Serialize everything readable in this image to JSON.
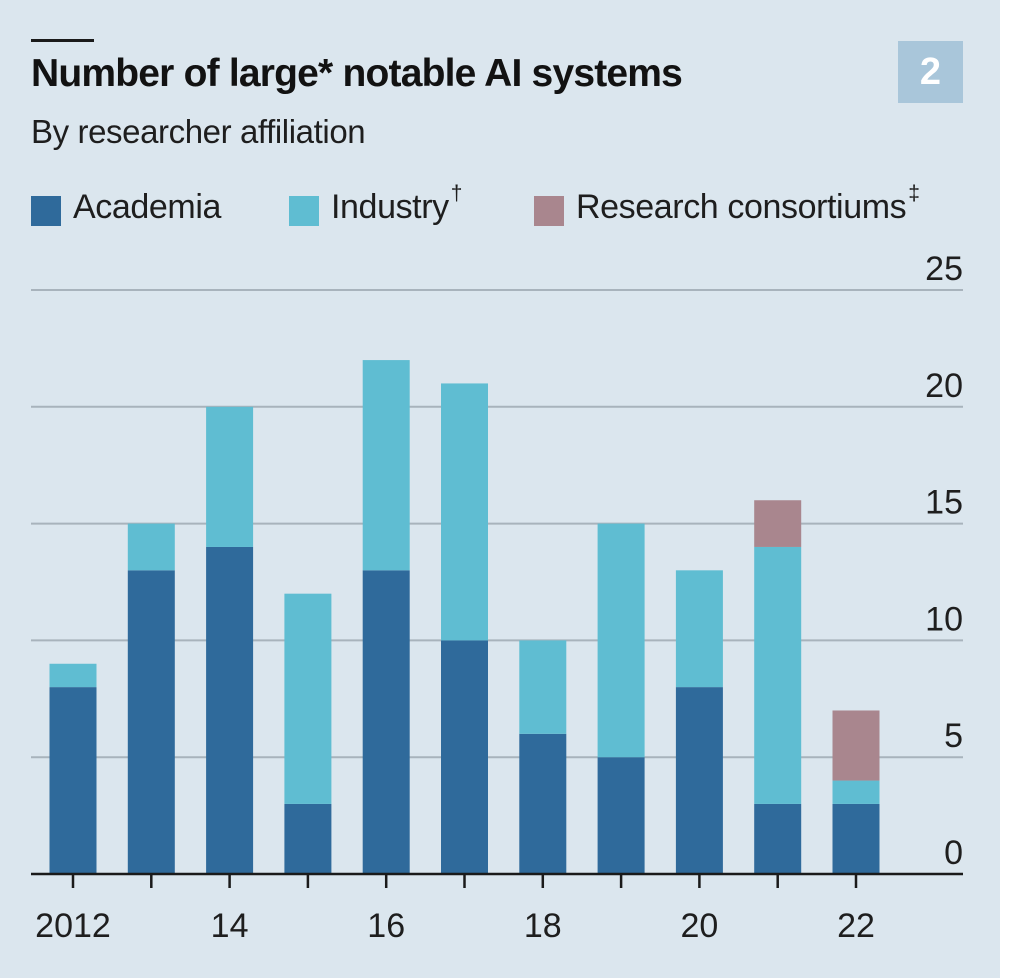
{
  "title": "Number of large* notable AI systems",
  "subtitle": "By researcher affiliation",
  "badge": "2",
  "legend": [
    {
      "label": "Academia",
      "mark": "",
      "color": "#2f6a9b"
    },
    {
      "label": "Industry",
      "mark": "†",
      "color": "#5fbdd2"
    },
    {
      "label": "Research consortiums",
      "mark": "‡",
      "color": "#a9868e"
    }
  ],
  "colors": {
    "background": "#dbe6ee",
    "gridline": "#a8b3bc",
    "axis": "#1a1a1a"
  },
  "chart_data": {
    "type": "bar",
    "stacked": true,
    "title": "Number of large* notable AI systems",
    "subtitle": "By researcher affiliation",
    "xlabel": "",
    "ylabel": "",
    "x": [
      2012,
      2013,
      2014,
      2015,
      2016,
      2017,
      2018,
      2019,
      2020,
      2021,
      2022
    ],
    "x_tick_labels": [
      "2012",
      "14",
      "16",
      "18",
      "20",
      "22"
    ],
    "x_tick_label_years": [
      2012,
      2014,
      2016,
      2018,
      2020,
      2022
    ],
    "series": [
      {
        "name": "Academia",
        "values": [
          8,
          13,
          14,
          3,
          13,
          10,
          6,
          5,
          8,
          3,
          3
        ],
        "color": "#2f6a9b"
      },
      {
        "name": "Industry†",
        "values": [
          1,
          2,
          6,
          9,
          9,
          11,
          4,
          10,
          5,
          11,
          1
        ],
        "color": "#5fbdd2"
      },
      {
        "name": "Research consortiums‡",
        "values": [
          0,
          0,
          0,
          0,
          0,
          0,
          0,
          0,
          0,
          2,
          3
        ],
        "color": "#a9868e"
      }
    ],
    "ylim": [
      0,
      25
    ],
    "y_ticks": [
      0,
      5,
      10,
      15,
      20,
      25
    ],
    "y_axis_side": "right",
    "grid": true,
    "legend_position": "top-left"
  }
}
